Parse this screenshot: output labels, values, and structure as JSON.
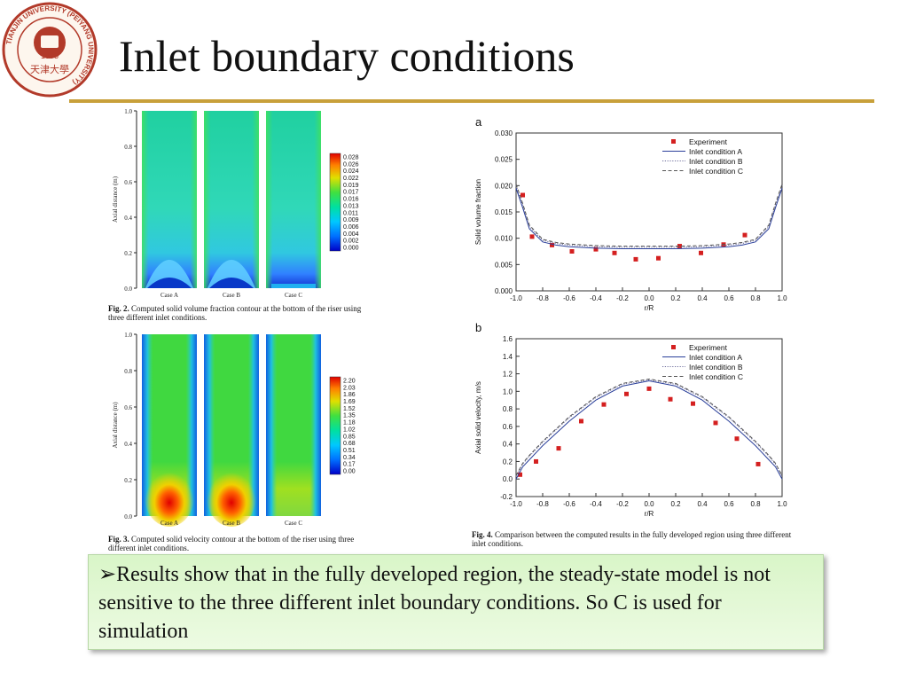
{
  "slide": {
    "title": "Inlet boundary conditions",
    "logo": {
      "ring_text": "TIANJIN UNIVERSITY (PEIYANG UNIVERSITY)",
      "center_text": "1895",
      "chinese_text": "天津大學"
    },
    "accent_color": "#c8a03a",
    "callout_text": "➢Results show that in the fully developed region, the steady-state model is not sensitive to the three different inlet boundary conditions. So C is used for simulation"
  },
  "contour_figures": [
    {
      "ylabel": "Axial distance (m)",
      "yticks": [
        "0.0",
        "0.2",
        "0.4",
        "0.6",
        "0.8",
        "1.0"
      ],
      "cases": [
        "Case A",
        "Case B",
        "Case C"
      ],
      "colorbar": [
        "0.028",
        "0.026",
        "0.024",
        "0.022",
        "0.019",
        "0.017",
        "0.016",
        "0.013",
        "0.011",
        "0.009",
        "0.006",
        "0.004",
        "0.002",
        "0.000"
      ],
      "caption_label": "Fig. 2.",
      "caption_text": "Computed solid volume fraction contour at the bottom of the riser using three different inlet conditions."
    },
    {
      "ylabel": "Axial distance (m)",
      "yticks": [
        "0.0",
        "0.2",
        "0.4",
        "0.6",
        "0.8",
        "1.0"
      ],
      "cases": [
        "Case A",
        "Case B",
        "Case C"
      ],
      "colorbar": [
        "2.20",
        "2.03",
        "1.86",
        "1.69",
        "1.52",
        "1.35",
        "1.18",
        "1.02",
        "0.85",
        "0.68",
        "0.51",
        "0.34",
        "0.17",
        "0.00"
      ],
      "caption_label": "Fig. 3.",
      "caption_text": "Computed solid velocity contour at the bottom of the riser using three different inlet conditions."
    }
  ],
  "fig4_caption": {
    "label": "Fig. 4.",
    "text": "Comparison between the computed results in the fully developed region using three different inlet conditions."
  },
  "chart_data": [
    {
      "type": "scatter",
      "panel_label": "a",
      "xlabel": "r/R",
      "ylabel": "Solid volume fraction",
      "xlim": [
        -1.0,
        1.0
      ],
      "ylim": [
        0.0,
        0.03
      ],
      "xticks": [
        "-1.0",
        "-0.8",
        "-0.6",
        "-0.4",
        "-0.2",
        "0.0",
        "0.2",
        "0.4",
        "0.6",
        "0.8",
        "1.0"
      ],
      "yticks": [
        "0.000",
        "0.005",
        "0.010",
        "0.015",
        "0.020",
        "0.025",
        "0.030"
      ],
      "legend_position": "top-right",
      "series": [
        {
          "name": "Experiment",
          "kind": "points",
          "color": "#d42020",
          "x": [
            -0.95,
            -0.88,
            -0.73,
            -0.58,
            -0.4,
            -0.26,
            -0.1,
            0.07,
            0.23,
            0.39,
            0.56,
            0.72
          ],
          "y": [
            0.0182,
            0.0103,
            0.0087,
            0.0075,
            0.0079,
            0.0072,
            0.006,
            0.0062,
            0.0085,
            0.0072,
            0.0088,
            0.0106
          ]
        },
        {
          "name": "Inlet condition A",
          "kind": "line",
          "style": "solid",
          "color": "#2a3f9a",
          "x": [
            -1.0,
            -0.95,
            -0.9,
            -0.8,
            -0.7,
            -0.6,
            -0.4,
            -0.2,
            0.0,
            0.2,
            0.4,
            0.6,
            0.7,
            0.8,
            0.9,
            0.95,
            1.0
          ],
          "y": [
            0.0195,
            0.0158,
            0.0118,
            0.0093,
            0.0087,
            0.0084,
            0.0081,
            0.008,
            0.008,
            0.008,
            0.0081,
            0.0084,
            0.0087,
            0.0093,
            0.0118,
            0.0158,
            0.0195
          ]
        },
        {
          "name": "Inlet condition B",
          "kind": "line",
          "style": "dotted",
          "color": "#6b6b9a",
          "x": [
            -1.0,
            -0.95,
            -0.9,
            -0.8,
            -0.7,
            -0.6,
            -0.4,
            -0.2,
            0.0,
            0.2,
            0.4,
            0.6,
            0.7,
            0.8,
            0.9,
            0.95,
            1.0
          ],
          "y": [
            0.02,
            0.0163,
            0.0122,
            0.0096,
            0.009,
            0.0087,
            0.0084,
            0.0083,
            0.0083,
            0.0083,
            0.0084,
            0.0087,
            0.009,
            0.0096,
            0.0122,
            0.0163,
            0.02
          ]
        },
        {
          "name": "Inlet condition C",
          "kind": "line",
          "style": "dashed",
          "color": "#555555",
          "x": [
            -1.0,
            -0.95,
            -0.9,
            -0.8,
            -0.7,
            -0.6,
            -0.4,
            -0.2,
            0.0,
            0.2,
            0.4,
            0.6,
            0.7,
            0.8,
            0.9,
            0.95,
            1.0
          ],
          "y": [
            0.0203,
            0.0166,
            0.0125,
            0.0098,
            0.0092,
            0.0089,
            0.0086,
            0.0085,
            0.0085,
            0.0085,
            0.0086,
            0.0089,
            0.0092,
            0.0098,
            0.0125,
            0.0166,
            0.0203
          ]
        }
      ]
    },
    {
      "type": "scatter",
      "panel_label": "b",
      "xlabel": "r/R",
      "ylabel": "Axial solid velocity, m/s",
      "xlim": [
        -1.0,
        1.0
      ],
      "ylim": [
        -0.2,
        1.6
      ],
      "xticks": [
        "-1.0",
        "-0.8",
        "-0.6",
        "-0.4",
        "-0.2",
        "0.0",
        "0.2",
        "0.4",
        "0.6",
        "0.8",
        "1.0"
      ],
      "yticks": [
        "-0.2",
        "0.0",
        "0.2",
        "0.4",
        "0.6",
        "0.8",
        "1.0",
        "1.2",
        "1.4",
        "1.6"
      ],
      "legend_position": "top-right",
      "series": [
        {
          "name": "Experiment",
          "kind": "points",
          "color": "#d42020",
          "x": [
            -0.97,
            -0.85,
            -0.68,
            -0.51,
            -0.34,
            -0.17,
            0.0,
            0.16,
            0.33,
            0.5,
            0.66,
            0.82
          ],
          "y": [
            0.05,
            0.2,
            0.35,
            0.66,
            0.85,
            0.97,
            1.03,
            0.91,
            0.86,
            0.64,
            0.46,
            0.17
          ]
        },
        {
          "name": "Inlet condition A",
          "kind": "line",
          "style": "solid",
          "color": "#2a3f9a",
          "x": [
            -1.0,
            -0.95,
            -0.9,
            -0.8,
            -0.6,
            -0.4,
            -0.2,
            0.0,
            0.2,
            0.4,
            0.6,
            0.8,
            0.9,
            0.95,
            1.0
          ],
          "y": [
            0.0,
            0.14,
            0.22,
            0.38,
            0.66,
            0.9,
            1.06,
            1.12,
            1.06,
            0.9,
            0.66,
            0.38,
            0.22,
            0.14,
            0.0
          ]
        },
        {
          "name": "Inlet condition B",
          "kind": "line",
          "style": "dotted",
          "color": "#6b6b9a",
          "x": [
            -1.0,
            -0.95,
            -0.9,
            -0.8,
            -0.6,
            -0.4,
            -0.2,
            0.0,
            0.2,
            0.4,
            0.6,
            0.8,
            0.9,
            0.95,
            1.0
          ],
          "y": [
            0.03,
            0.17,
            0.26,
            0.42,
            0.7,
            0.93,
            1.08,
            1.13,
            1.08,
            0.93,
            0.7,
            0.42,
            0.26,
            0.17,
            0.03
          ]
        },
        {
          "name": "Inlet condition C",
          "kind": "line",
          "style": "dashed",
          "color": "#555555",
          "x": [
            -1.0,
            -0.95,
            -0.9,
            -0.8,
            -0.6,
            -0.4,
            -0.2,
            0.0,
            0.2,
            0.4,
            0.6,
            0.8,
            0.9,
            0.95,
            1.0
          ],
          "y": [
            0.04,
            0.18,
            0.27,
            0.43,
            0.71,
            0.94,
            1.09,
            1.14,
            1.09,
            0.94,
            0.71,
            0.43,
            0.27,
            0.18,
            0.04
          ]
        }
      ]
    }
  ]
}
